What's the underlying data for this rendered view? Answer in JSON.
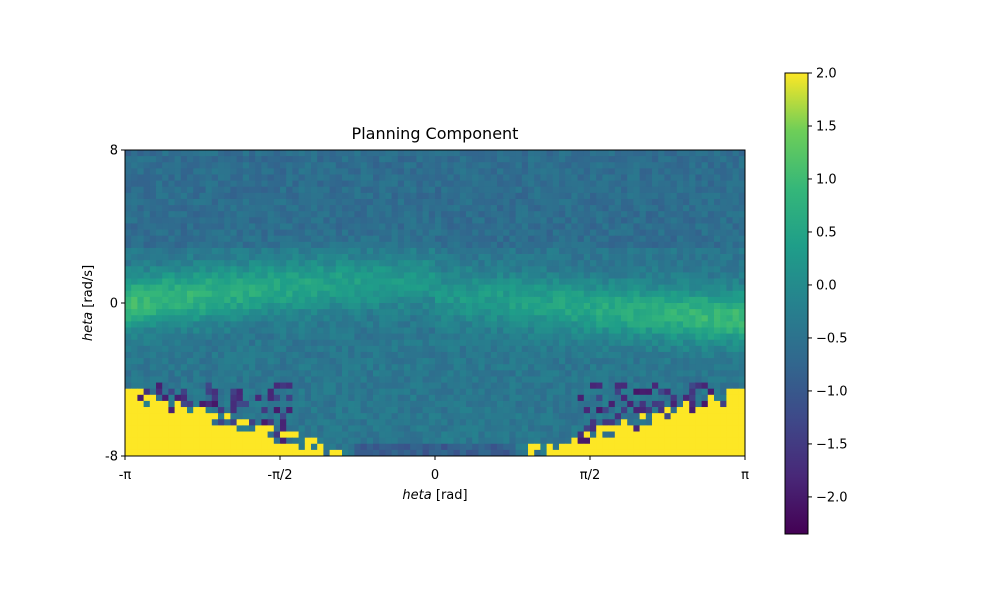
{
  "chart_data": {
    "type": "heatmap",
    "title": "Planning Component",
    "xlabel": "heta [rad]",
    "xlabel_parts": {
      "var": "heta",
      "unit": " [rad]"
    },
    "ylabel": "heta [rad/s]",
    "ylabel_parts": {
      "var": "heta",
      "unit": " [rad/s]"
    },
    "xlim": [
      -3.14159,
      3.14159
    ],
    "ylim": [
      -8,
      8
    ],
    "x_ticks": [
      {
        "value": -3.14159,
        "label": "-π"
      },
      {
        "value": -1.5708,
        "label": "-π/2"
      },
      {
        "value": 0,
        "label": "0"
      },
      {
        "value": 1.5708,
        "label": "π/2"
      },
      {
        "value": 3.14159,
        "label": "π"
      }
    ],
    "y_ticks": [
      {
        "value": -8,
        "label": "-8"
      },
      {
        "value": 0,
        "label": "0"
      },
      {
        "value": 8,
        "label": "8"
      }
    ],
    "grid": {
      "x_bins": 100,
      "y_bins": 50
    },
    "colormap": "viridis",
    "colorbar": {
      "vmin": -2.35,
      "vmax": 2.0,
      "ticks": [
        {
          "value": 2.0,
          "label": "2.0"
        },
        {
          "value": 1.5,
          "label": "1.5"
        },
        {
          "value": 1.0,
          "label": "1.0"
        },
        {
          "value": 0.5,
          "label": "0.5"
        },
        {
          "value": 0.0,
          "label": "0.0"
        },
        {
          "value": -0.5,
          "label": "−0.5"
        },
        {
          "value": -1.0,
          "label": "−1.0"
        },
        {
          "value": -1.5,
          "label": "−1.5"
        },
        {
          "value": -2.0,
          "label": "−2.0"
        }
      ]
    },
    "field_description": {
      "background_value": -0.65,
      "ridge_value": 0.6,
      "saturated_value": 2.0,
      "saturated_region": "bottom corners (theta near ±π, theta_dot below about -5)"
    }
  }
}
